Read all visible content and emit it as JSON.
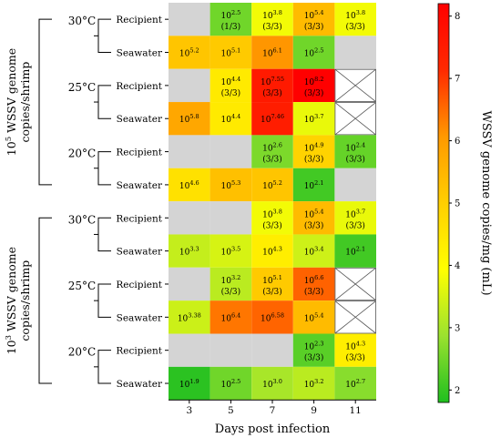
{
  "chart_data": {
    "type": "heatmap",
    "xlabel": "Days post infection",
    "x_categories": [
      "3",
      "5",
      "7",
      "9",
      "11"
    ],
    "colorbar": {
      "label": "WSSV genome copies/mg (mL)",
      "ticks": [
        "2",
        "3",
        "4",
        "5",
        "6",
        "7",
        "8"
      ],
      "range": [
        1.8,
        8.2
      ],
      "colors": [
        "#1fbf1f",
        "#9be22f",
        "#ffff00",
        "#ffcf00",
        "#ff9900",
        "#ff2a00",
        "#ff0000"
      ]
    },
    "groups": [
      {
        "label": "10^5 WSSV genome copies/shrimp",
        "label_parts": [
          "10",
          "5",
          " WSSV genome",
          "copies/shrimp"
        ],
        "temperatures": [
          {
            "temp": "30°C",
            "rows": [
              {
                "name": "Recipient",
                "cells": [
                  {
                    "state": "na"
                  },
                  {
                    "exp": "2.5",
                    "value": 2.5,
                    "count": "(1/3)"
                  },
                  {
                    "exp": "3.8",
                    "value": 3.8,
                    "count": "(3/3)"
                  },
                  {
                    "exp": "5.4",
                    "value": 5.4,
                    "count": "(3/3)"
                  },
                  {
                    "exp": "3.8",
                    "value": 3.8,
                    "count": "(3/3)"
                  }
                ]
              },
              {
                "name": "Seawater",
                "cells": [
                  {
                    "exp": "5.2",
                    "value": 5.2
                  },
                  {
                    "exp": "5.1",
                    "value": 5.1
                  },
                  {
                    "exp": "6.1",
                    "value": 6.1
                  },
                  {
                    "exp": "2.5",
                    "value": 2.5
                  },
                  {
                    "state": "na"
                  }
                ]
              }
            ]
          },
          {
            "temp": "25°C",
            "rows": [
              {
                "name": "Recipient",
                "cells": [
                  {
                    "state": "na"
                  },
                  {
                    "exp": "4.4",
                    "value": 4.4,
                    "count": "(3/3)"
                  },
                  {
                    "exp": "7.55",
                    "value": 7.55,
                    "count": "(3/3)"
                  },
                  {
                    "exp": "8.2",
                    "value": 8.2,
                    "count": "(3/3)"
                  },
                  {
                    "state": "x"
                  }
                ]
              },
              {
                "name": "Seawater",
                "cells": [
                  {
                    "exp": "5.8",
                    "value": 5.8
                  },
                  {
                    "exp": "4.4",
                    "value": 4.4
                  },
                  {
                    "exp": "7.46",
                    "value": 7.46
                  },
                  {
                    "exp": "3.7",
                    "value": 3.7
                  },
                  {
                    "state": "x"
                  }
                ]
              }
            ]
          },
          {
            "temp": "20°C",
            "rows": [
              {
                "name": "Recipient",
                "cells": [
                  {
                    "state": "na"
                  },
                  {
                    "state": "na"
                  },
                  {
                    "exp": "2.6",
                    "value": 2.6,
                    "count": "(3/3)"
                  },
                  {
                    "exp": "4.9",
                    "value": 4.9,
                    "count": "(3/3)"
                  },
                  {
                    "exp": "2.4",
                    "value": 2.4,
                    "count": "(3/3)"
                  }
                ]
              },
              {
                "name": "Seawater",
                "cells": [
                  {
                    "exp": "4.6",
                    "value": 4.6
                  },
                  {
                    "exp": "5.3",
                    "value": 5.3
                  },
                  {
                    "exp": "5.2",
                    "value": 5.2
                  },
                  {
                    "exp": "2.1",
                    "value": 2.1
                  },
                  {
                    "state": "na"
                  }
                ]
              }
            ]
          }
        ]
      },
      {
        "label": "10^3 WSSV genome copies/shrimp",
        "label_parts": [
          "10",
          "3",
          " WSSV genome",
          "copies/shrimp"
        ],
        "temperatures": [
          {
            "temp": "30°C",
            "rows": [
              {
                "name": "Recipient",
                "cells": [
                  {
                    "state": "na"
                  },
                  {
                    "state": "na"
                  },
                  {
                    "exp": "3.8",
                    "value": 3.8,
                    "count": "(3/3)"
                  },
                  {
                    "exp": "5.4",
                    "value": 5.4,
                    "count": "(3/3)"
                  },
                  {
                    "exp": "3.7",
                    "value": 3.7,
                    "count": "(3/3)"
                  }
                ]
              },
              {
                "name": "Seawater",
                "cells": [
                  {
                    "exp": "3.3",
                    "value": 3.3
                  },
                  {
                    "exp": "3.5",
                    "value": 3.5
                  },
                  {
                    "exp": "4.3",
                    "value": 4.3
                  },
                  {
                    "exp": "3.4",
                    "value": 3.4
                  },
                  {
                    "exp": "2.1",
                    "value": 2.1
                  }
                ]
              }
            ]
          },
          {
            "temp": "25°C",
            "rows": [
              {
                "name": "Recipient",
                "cells": [
                  {
                    "state": "na"
                  },
                  {
                    "exp": "3.2",
                    "value": 3.2,
                    "count": "(3/3)"
                  },
                  {
                    "exp": "5.1",
                    "value": 5.1,
                    "count": "(3/3)"
                  },
                  {
                    "exp": "6.6",
                    "value": 6.6,
                    "count": "(3/3)"
                  },
                  {
                    "state": "x"
                  }
                ]
              },
              {
                "name": "Seawater",
                "cells": [
                  {
                    "exp": "3.38",
                    "value": 3.38
                  },
                  {
                    "exp": "6.4",
                    "value": 6.4
                  },
                  {
                    "exp": "6.58",
                    "value": 6.58
                  },
                  {
                    "exp": "5.4",
                    "value": 5.4
                  },
                  {
                    "state": "x"
                  }
                ]
              }
            ]
          },
          {
            "temp": "20°C",
            "rows": [
              {
                "name": "Recipient",
                "cells": [
                  {
                    "state": "na"
                  },
                  {
                    "state": "na"
                  },
                  {
                    "state": "na"
                  },
                  {
                    "exp": "2.3",
                    "value": 2.3,
                    "count": "(3/3)"
                  },
                  {
                    "exp": "4.3",
                    "value": 4.3,
                    "count": "(3/3)"
                  }
                ]
              },
              {
                "name": "Seawater",
                "cells": [
                  {
                    "exp": "1.9",
                    "value": 1.9
                  },
                  {
                    "exp": "2.5",
                    "value": 2.5
                  },
                  {
                    "exp": "3.0",
                    "value": 3.0
                  },
                  {
                    "exp": "3.2",
                    "value": 3.2
                  },
                  {
                    "exp": "2.7",
                    "value": 2.7
                  }
                ]
              }
            ]
          }
        ]
      }
    ]
  }
}
